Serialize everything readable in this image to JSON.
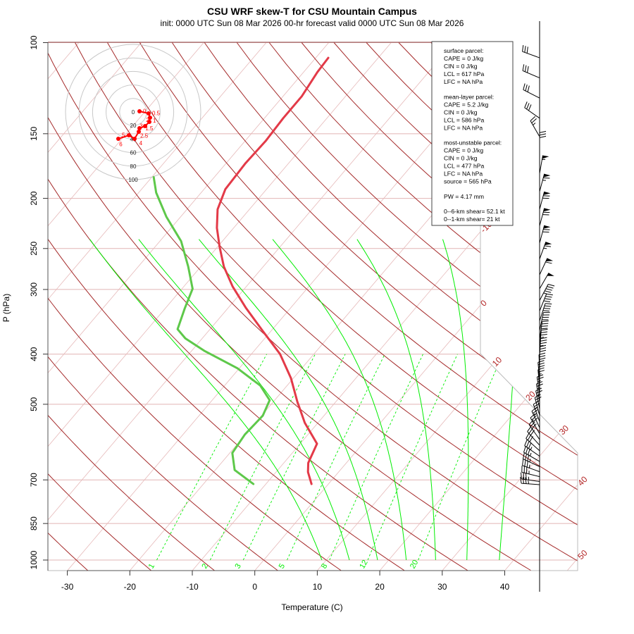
{
  "title": "CSU WRF skew-T for CSU Mountain Campus",
  "subtitle": "init: 0000 UTC Sun 08 Mar 2026    00-hr forecast valid 0000 UTC Sun 08 Mar 2026",
  "info_box": {
    "lines": [
      "surface parcel:",
      "CAPE = 0 J/kg",
      "CIN = 0 J/kg",
      "LCL = 617 hPa",
      "LFC = NA hPa",
      "",
      "mean-layer parcel:",
      "CAPE = 5.2 J/kg",
      "CIN = 0 J/kg",
      "LCL = 586 hPa",
      "LFC = NA hPa",
      "",
      "most-unstable parcel:",
      "CAPE = 0 J/kg",
      "CIN = 0 J/kg",
      "LCL = 477 hPa",
      "LFC = NA hPa",
      "source = 565 hPa",
      "",
      "PW =  4.17 mm",
      "",
      "0--6-km shear= 52.1 kt",
      "0--1-km shear= 21 kt"
    ]
  },
  "chart_data": {
    "type": "line",
    "subtype": "skew-T log-P",
    "xlabel": "Temperature (C)",
    "ylabel": "P (hPa)",
    "x_ticks": [
      -30,
      -20,
      -10,
      0,
      10,
      20,
      30,
      40
    ],
    "y_ticks": [
      100,
      150,
      200,
      250,
      300,
      400,
      500,
      700,
      850,
      1000
    ],
    "y_scale": "log",
    "ylim": [
      1050,
      100
    ],
    "colors": {
      "temperature": "#e33a48",
      "dewpoint": "#5ec84a",
      "isotherm": "#e6b9b9",
      "dry_adiabat": "#a52a2a",
      "moist_adiabat": "#00ee00",
      "mixing_ratio": "#00ee00",
      "isobar": "#e2b4b4",
      "hodograph": "#ff0000",
      "isotherm_label": "#b22222"
    },
    "isotherm_labels": [
      -10,
      0,
      10,
      20,
      30,
      40,
      50
    ],
    "mixing_ratio_labels": [
      1,
      2,
      3,
      5,
      8,
      12,
      20
    ],
    "moist_adiabat_1000hPa_temps": [
      9.3,
      13.7,
      18.2,
      22.8,
      27.5,
      32.5,
      37.7
    ],
    "dry_adiabat_thetas": [
      -30,
      -20,
      -10,
      0,
      10,
      20,
      30,
      40,
      50,
      60,
      70,
      80,
      90,
      100,
      110,
      120,
      130,
      140,
      150,
      160,
      170,
      180
    ],
    "temperature": [
      {
        "p": 713,
        "t": -2.7
      },
      {
        "p": 676,
        "t": -4.9
      },
      {
        "p": 649,
        "t": -6.1
      },
      {
        "p": 596,
        "t": -7.3
      },
      {
        "p": 543,
        "t": -12.1
      },
      {
        "p": 494,
        "t": -16.2
      },
      {
        "p": 445,
        "t": -20.4
      },
      {
        "p": 400,
        "t": -25.4
      },
      {
        "p": 361,
        "t": -31.3
      },
      {
        "p": 326,
        "t": -37.1
      },
      {
        "p": 296,
        "t": -42.2
      },
      {
        "p": 271,
        "t": -46.3
      },
      {
        "p": 248,
        "t": -49.7
      },
      {
        "p": 228,
        "t": -52.7
      },
      {
        "p": 210,
        "t": -55.1
      },
      {
        "p": 192,
        "t": -56.6
      },
      {
        "p": 171,
        "t": -56.9
      },
      {
        "p": 155,
        "t": -56.7
      },
      {
        "p": 140,
        "t": -57.0
      },
      {
        "p": 127,
        "t": -57.0
      },
      {
        "p": 114,
        "t": -57.8
      },
      {
        "p": 107,
        "t": -58.0
      }
    ],
    "dewpoint": [
      {
        "p": 713,
        "t": -12.0
      },
      {
        "p": 670,
        "t": -16.9
      },
      {
        "p": 621,
        "t": -19.6
      },
      {
        "p": 572,
        "t": -20.1
      },
      {
        "p": 526,
        "t": -19.8
      },
      {
        "p": 491,
        "t": -20.8
      },
      {
        "p": 460,
        "t": -24.3
      },
      {
        "p": 426,
        "t": -30.3
      },
      {
        "p": 394,
        "t": -38.0
      },
      {
        "p": 373,
        "t": -42.7
      },
      {
        "p": 358,
        "t": -45.2
      },
      {
        "p": 326,
        "t": -46.9
      },
      {
        "p": 299,
        "t": -48.3
      },
      {
        "p": 271,
        "t": -52.0
      },
      {
        "p": 242,
        "t": -56.6
      },
      {
        "p": 217,
        "t": -62.3
      },
      {
        "p": 195,
        "t": -67.2
      },
      {
        "p": 182,
        "t": -69.7
      }
    ],
    "wind_barbs": [
      {
        "p": 107,
        "dir": 290,
        "spd": 30
      },
      {
        "p": 117,
        "dir": 293,
        "spd": 30
      },
      {
        "p": 128,
        "dir": 297,
        "spd": 30
      },
      {
        "p": 140,
        "dir": 305,
        "spd": 30
      },
      {
        "p": 152,
        "dir": 330,
        "spd": 25
      },
      {
        "p": 162,
        "dir": 360,
        "spd": 30
      },
      {
        "p": 179,
        "dir": 10,
        "spd": 55
      },
      {
        "p": 194,
        "dir": 15,
        "spd": 65
      },
      {
        "p": 210,
        "dir": 15,
        "spd": 70
      },
      {
        "p": 226,
        "dir": 15,
        "spd": 70
      },
      {
        "p": 244,
        "dir": 15,
        "spd": 70
      },
      {
        "p": 262,
        "dir": 20,
        "spd": 65
      },
      {
        "p": 281,
        "dir": 25,
        "spd": 60
      },
      {
        "p": 299,
        "dir": 30,
        "spd": 50
      },
      {
        "p": 315,
        "dir": 28,
        "spd": 45
      },
      {
        "p": 330,
        "dir": 22,
        "spd": 40
      },
      {
        "p": 345,
        "dir": 18,
        "spd": 40
      },
      {
        "p": 360,
        "dir": 12,
        "spd": 40
      },
      {
        "p": 375,
        "dir": 8,
        "spd": 40
      },
      {
        "p": 390,
        "dir": 5,
        "spd": 35
      },
      {
        "p": 405,
        "dir": 3,
        "spd": 35
      },
      {
        "p": 420,
        "dir": 0,
        "spd": 30
      },
      {
        "p": 435,
        "dir": 358,
        "spd": 30
      },
      {
        "p": 450,
        "dir": 355,
        "spd": 30
      },
      {
        "p": 465,
        "dir": 355,
        "spd": 25
      },
      {
        "p": 480,
        "dir": 352,
        "spd": 25
      },
      {
        "p": 495,
        "dir": 350,
        "spd": 25
      },
      {
        "p": 510,
        "dir": 348,
        "spd": 25
      },
      {
        "p": 525,
        "dir": 345,
        "spd": 25
      },
      {
        "p": 540,
        "dir": 340,
        "spd": 25
      },
      {
        "p": 555,
        "dir": 335,
        "spd": 25
      },
      {
        "p": 570,
        "dir": 330,
        "spd": 30
      },
      {
        "p": 585,
        "dir": 325,
        "spd": 30
      },
      {
        "p": 600,
        "dir": 318,
        "spd": 30
      },
      {
        "p": 615,
        "dir": 312,
        "spd": 30
      },
      {
        "p": 630,
        "dir": 305,
        "spd": 35
      },
      {
        "p": 645,
        "dir": 300,
        "spd": 35
      },
      {
        "p": 660,
        "dir": 295,
        "spd": 35
      },
      {
        "p": 675,
        "dir": 290,
        "spd": 35
      },
      {
        "p": 690,
        "dir": 284,
        "spd": 35
      },
      {
        "p": 705,
        "dir": 278,
        "spd": 35
      },
      {
        "p": 715,
        "dir": 274,
        "spd": 35
      }
    ],
    "hodograph": {
      "ring_values": [
        20,
        40,
        60,
        80,
        100
      ],
      "center_label": "0",
      "points": [
        {
          "label": "0",
          "u": 9.4,
          "v": 1.0
        },
        {
          "label": "0.5",
          "u": 22.9,
          "v": -2.1
        },
        {
          "label": "1",
          "u": 25.0,
          "v": -8.3
        },
        {
          "label": "1.5",
          "u": 24.0,
          "v": -14.6
        },
        {
          "label": "2",
          "u": 17.7,
          "v": -20.8
        },
        {
          "label": "2.5",
          "u": 9.4,
          "v": -24.0
        },
        {
          "label": "3",
          "u": 8.3,
          "v": -29.2
        },
        {
          "label": "4",
          "u": 2.1,
          "v": -39.6
        },
        {
          "label": "5",
          "u": -6.3,
          "v": -34.4
        },
        {
          "label": "6",
          "u": -21.9,
          "v": -39.6
        }
      ]
    }
  }
}
